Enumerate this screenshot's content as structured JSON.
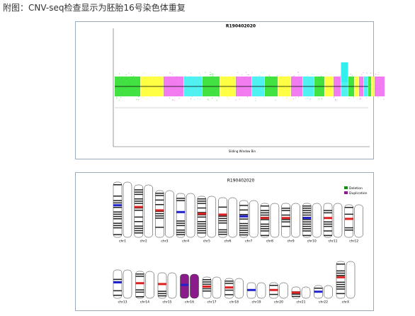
{
  "caption": "附图：CNV-seq检查显示为胚胎16号染色体重复",
  "figure1": {
    "title": "R190402020",
    "x_label": "Sliding Window Bin"
  },
  "figure2": {
    "title": "R190402020",
    "legend": [
      "Deletion",
      "Duplication"
    ],
    "chromosomes": [
      "chr1",
      "chr2",
      "chr3",
      "chr4",
      "chr5",
      "chr6",
      "chr7",
      "chr8",
      "chr9",
      "chr10",
      "chr11",
      "chr12",
      "chr13",
      "chr14",
      "chr15",
      "chr16",
      "chr17",
      "chr18",
      "chr19",
      "chr20",
      "chr21",
      "chr22",
      "chrX"
    ]
  }
}
